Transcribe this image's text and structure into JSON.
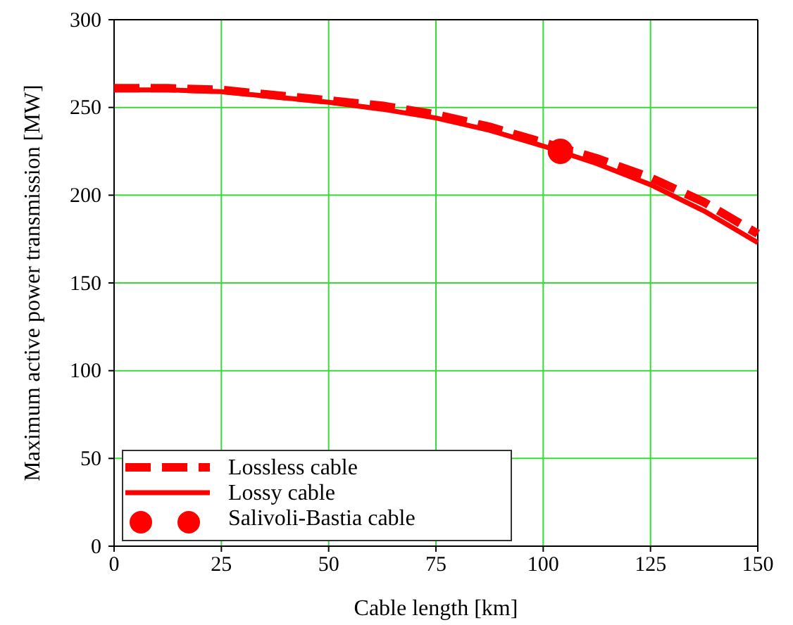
{
  "chart_data": {
    "type": "line",
    "xlabel": "Cable length [km]",
    "ylabel": "Maximum active power transmission [MW]",
    "xlim": [
      0,
      150
    ],
    "ylim": [
      0,
      300
    ],
    "xticks": [
      0,
      25,
      50,
      75,
      100,
      125,
      150
    ],
    "yticks": [
      0,
      50,
      100,
      150,
      200,
      250,
      300
    ],
    "grid": true,
    "legend": "bottom left",
    "series": [
      {
        "name": "Lossless cable",
        "line_style": "dashed",
        "color": "#ff0000",
        "x": [
          0,
          12.5,
          25,
          37.5,
          50,
          62.5,
          75,
          87.5,
          100,
          112.5,
          125,
          137.5,
          150
        ],
        "values": [
          261,
          261,
          260,
          257,
          254,
          251,
          246,
          239,
          230,
          221,
          210,
          196,
          178
        ]
      },
      {
        "name": "Lossy cable",
        "line_style": "solid",
        "color": "#ff0000",
        "x": [
          0,
          12.5,
          25,
          37.5,
          50,
          62.5,
          75,
          87.5,
          100,
          112.5,
          125,
          137.5,
          150
        ],
        "values": [
          260,
          260,
          259,
          256,
          253,
          249,
          244,
          237,
          228,
          218,
          206,
          191,
          173
        ]
      },
      {
        "name": "Salivoli-Bastia cable",
        "type": "scatter",
        "marker": "circle",
        "color": "#ff0000",
        "x": [
          104
        ],
        "values": [
          225
        ]
      }
    ]
  }
}
